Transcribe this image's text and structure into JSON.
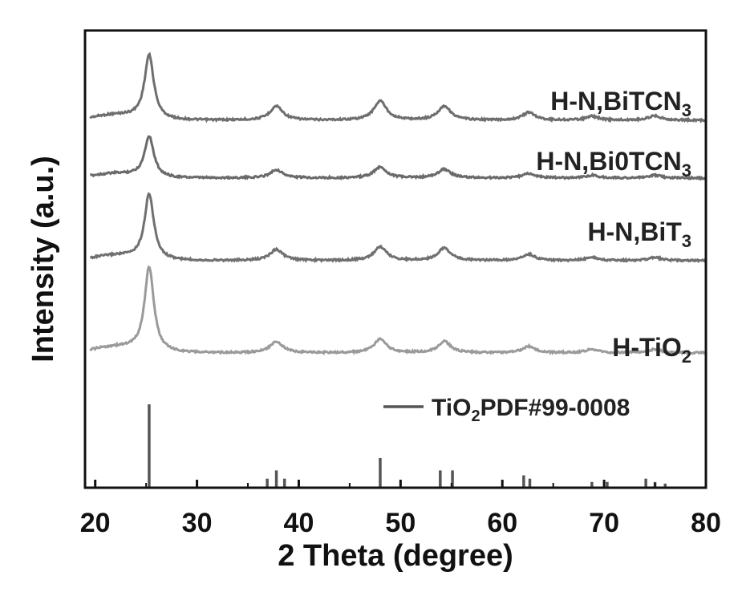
{
  "chart_data": {
    "type": "line",
    "xlabel": "2 Theta (degree)",
    "ylabel": "Intensity (a.u.)",
    "xlim": [
      19,
      80
    ],
    "x_ticks": [
      "20",
      "30",
      "40",
      "50",
      "60",
      "70",
      "80"
    ],
    "y_ticks_shown": false,
    "legend": "labels placed at right of each trace",
    "series": [
      {
        "name": "H-N,BiTCN",
        "name_subscript": "3",
        "color": "#6e6e6e",
        "offset": 3,
        "peaks": [
          [
            25.3,
            1.0
          ],
          [
            37.8,
            0.22
          ],
          [
            48.0,
            0.3
          ],
          [
            54.3,
            0.22
          ],
          [
            62.6,
            0.12
          ],
          [
            68.8,
            0.06
          ],
          [
            75.0,
            0.07
          ]
        ]
      },
      {
        "name": "H-N,Bi0TCN",
        "name_subscript": "3",
        "color": "#6a6a6a",
        "offset": 2,
        "peaks": [
          [
            25.3,
            0.75
          ],
          [
            37.8,
            0.15
          ],
          [
            48.0,
            0.2
          ],
          [
            54.3,
            0.16
          ],
          [
            62.6,
            0.08
          ],
          [
            68.8,
            0.05
          ],
          [
            75.0,
            0.05
          ]
        ]
      },
      {
        "name": "H-N,BiT",
        "name_subscript": "3",
        "color": "#707070",
        "offset": 1,
        "peaks": [
          [
            25.3,
            1.05
          ],
          [
            37.8,
            0.18
          ],
          [
            48.0,
            0.22
          ],
          [
            54.3,
            0.2
          ],
          [
            62.6,
            0.1
          ],
          [
            68.8,
            0.05
          ],
          [
            75.0,
            0.05
          ]
        ]
      },
      {
        "name": "H-TiO",
        "name_subscript": "2",
        "color": "#9a9a9a",
        "offset": 0,
        "peaks": [
          [
            25.3,
            1.2
          ],
          [
            37.8,
            0.16
          ],
          [
            48.0,
            0.19
          ],
          [
            54.3,
            0.16
          ],
          [
            62.6,
            0.09
          ],
          [
            68.8,
            0.05
          ],
          [
            75.0,
            0.05
          ]
        ]
      }
    ],
    "reference": {
      "label_prefix": "TiO",
      "label_subscript": "2",
      "label_suffix": "PDF#99-0008",
      "color": "#555555",
      "lines": [
        [
          25.3,
          100
        ],
        [
          36.9,
          10
        ],
        [
          37.8,
          20
        ],
        [
          38.6,
          10
        ],
        [
          48.0,
          35
        ],
        [
          53.9,
          20
        ],
        [
          55.1,
          20
        ],
        [
          62.1,
          14
        ],
        [
          62.7,
          10
        ],
        [
          68.8,
          6
        ],
        [
          70.3,
          6
        ],
        [
          74.1,
          10
        ],
        [
          75.0,
          6
        ],
        [
          76.0,
          4
        ]
      ]
    }
  }
}
